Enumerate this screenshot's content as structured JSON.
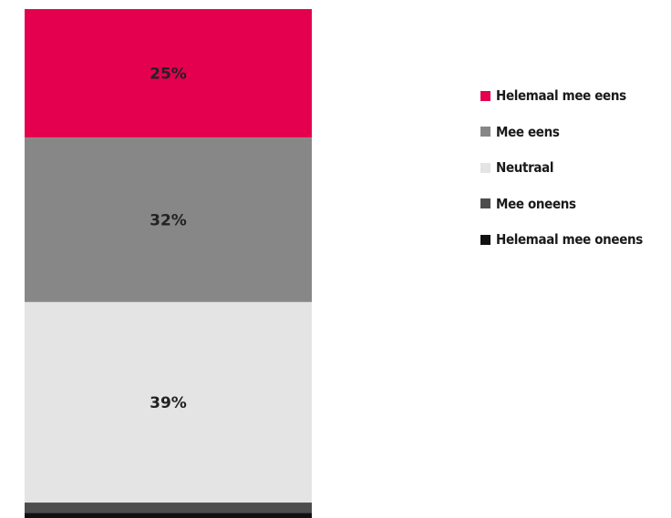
{
  "chart_data": {
    "type": "bar",
    "stacked": true,
    "orientation": "vertical",
    "categories": [
      ""
    ],
    "series": [
      {
        "name": "Helemaal mee eens",
        "values": [
          25
        ],
        "color": "#e4004f",
        "label": "25%"
      },
      {
        "name": "Mee eens",
        "values": [
          32
        ],
        "color": "#878787",
        "label": "32%"
      },
      {
        "name": "Neutraal",
        "values": [
          39
        ],
        "color": "#e4e4e4",
        "label": "39%"
      },
      {
        "name": "Mee oneens",
        "values": [
          2
        ],
        "color": "#4d4d4d",
        "label": ""
      },
      {
        "name": "Helemaal mee oneens",
        "values": [
          1
        ],
        "color": "#111111",
        "label": ""
      }
    ],
    "value_unit": "%",
    "title": "",
    "xlabel": "",
    "ylabel": "",
    "grid": false,
    "legend_position": "right"
  }
}
